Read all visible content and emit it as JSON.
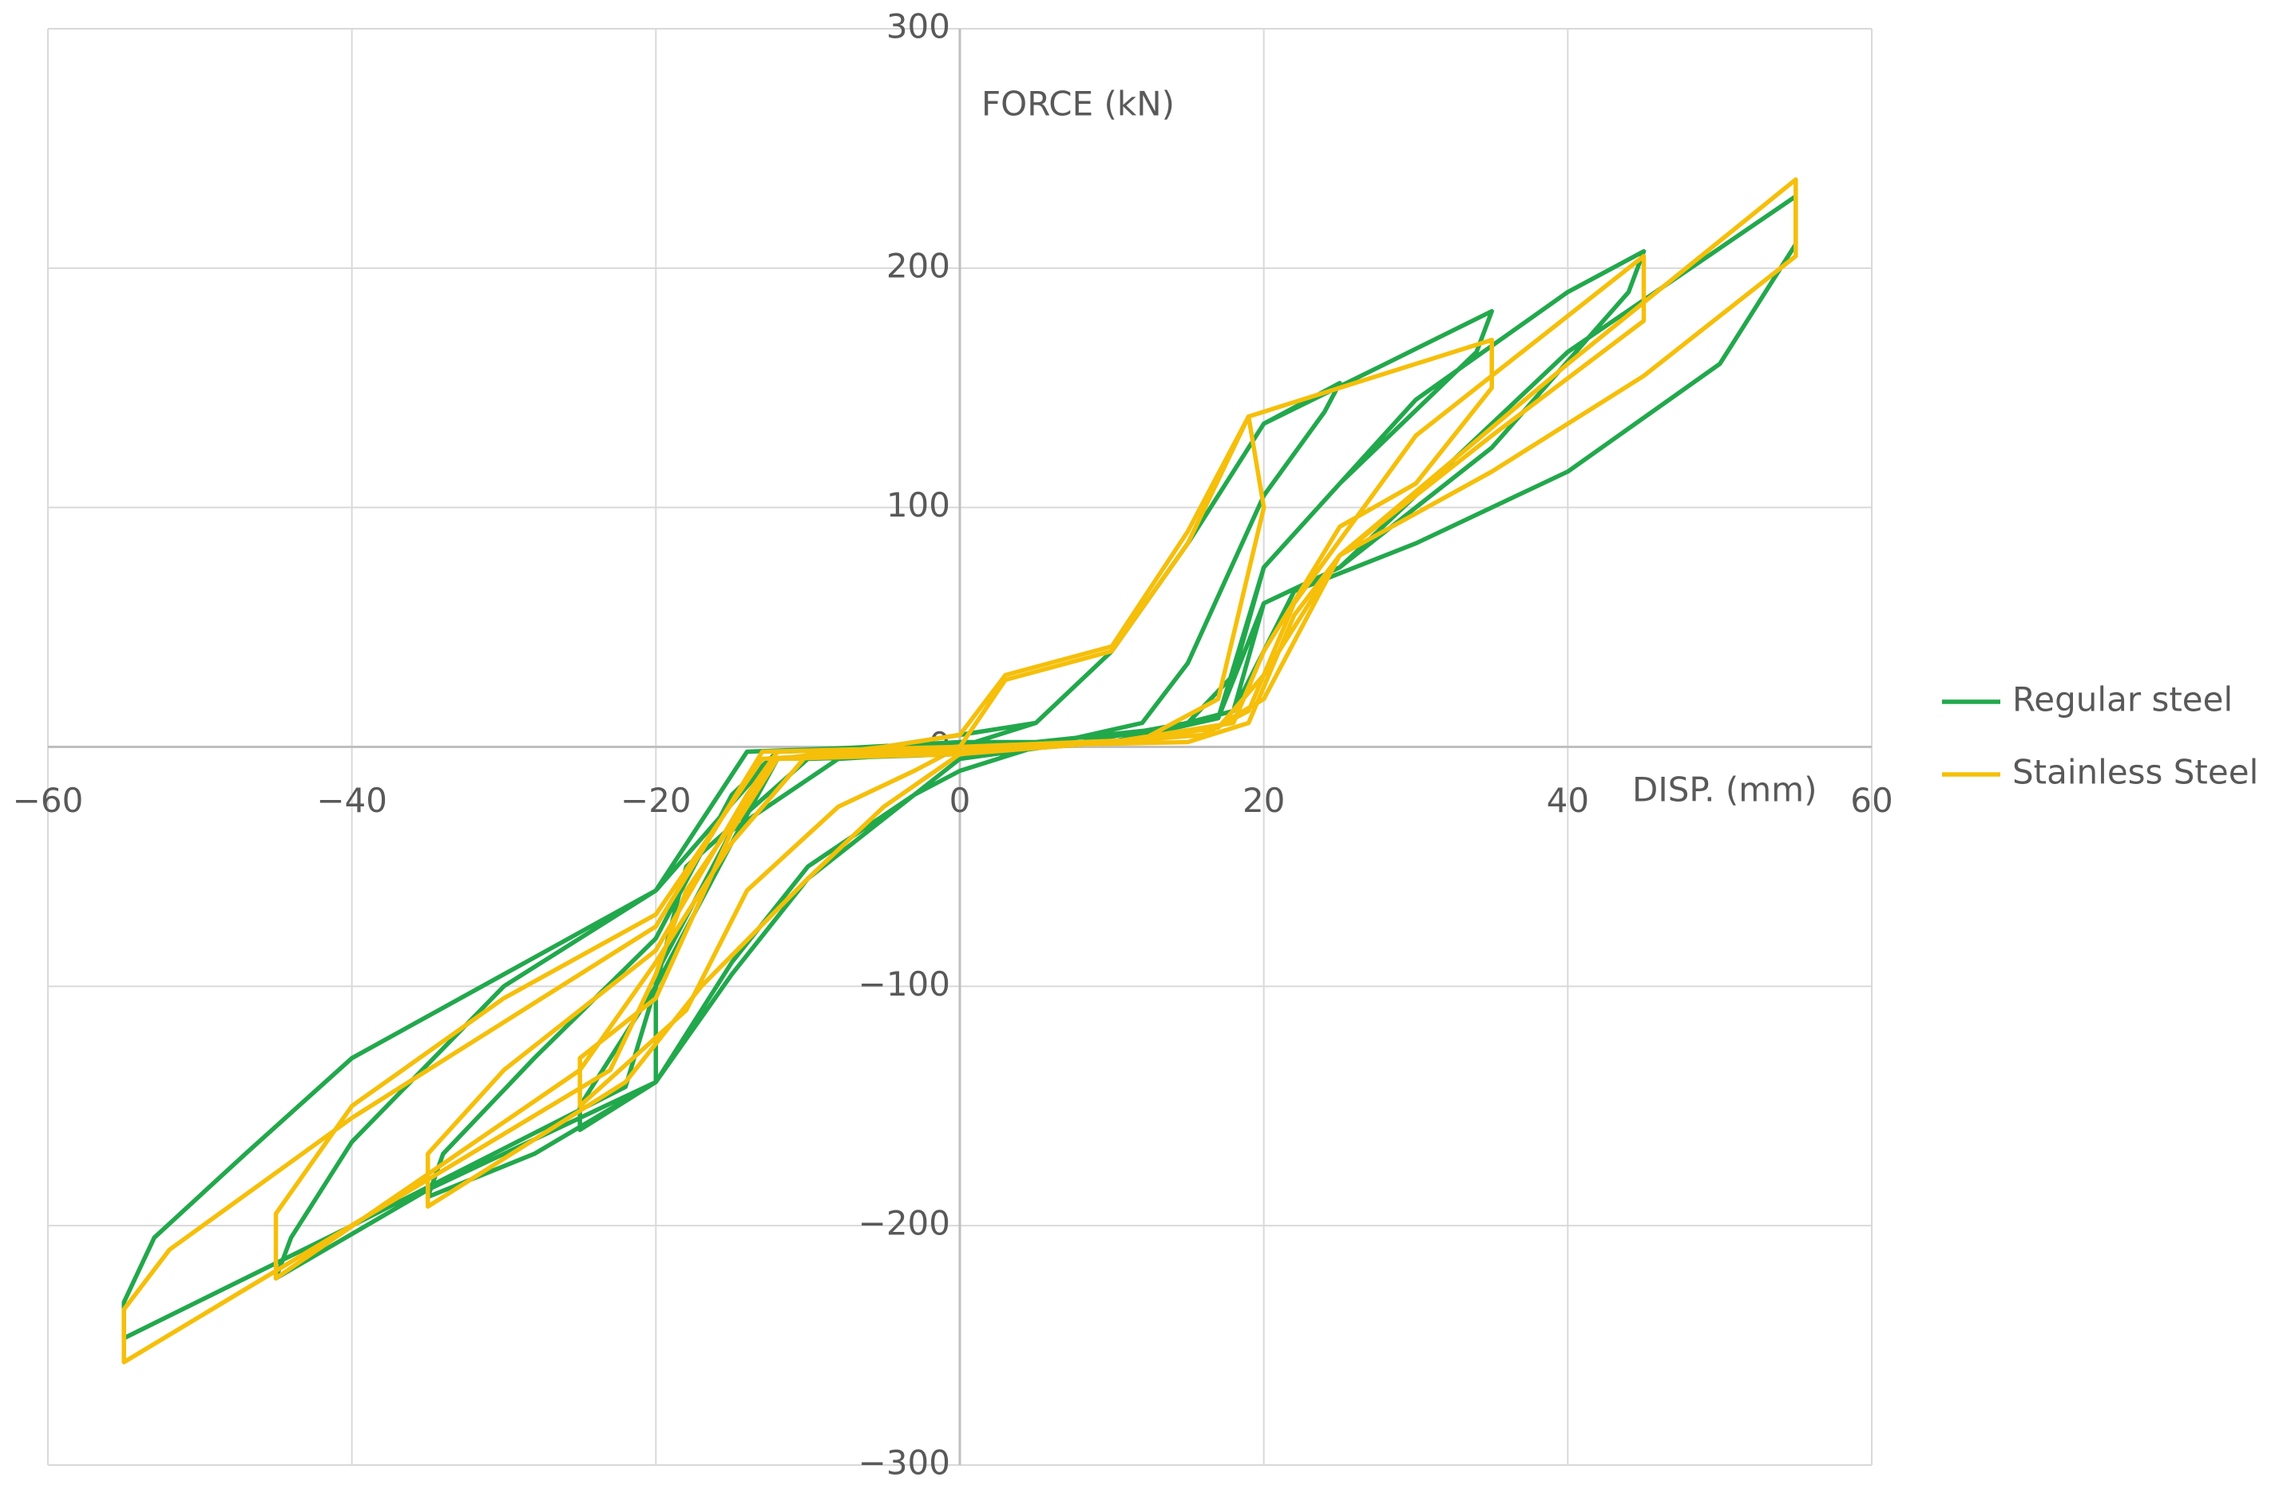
{
  "chart_data": {
    "type": "line",
    "x_label": "DISP. (mm)",
    "y_label": "FORCE (kN)",
    "xlim": [
      -60,
      60
    ],
    "xticks": [
      {
        "value": -60,
        "label": "−60"
      },
      {
        "value": -40,
        "label": "−40"
      },
      {
        "value": -20,
        "label": "−20"
      },
      0,
      20,
      40,
      60
    ],
    "ylim": [
      -300,
      300
    ],
    "yticks": [
      {
        "value": -300,
        "label": "−300"
      },
      {
        "value": -200,
        "label": "−200"
      },
      {
        "value": -100,
        "label": "−100"
      },
      0,
      100,
      200,
      300
    ],
    "grid": true,
    "legend": "right",
    "series": [
      {
        "name": "Regular steel",
        "color": "#22a84c",
        "x": [
          0,
          5,
          10,
          15,
          20,
          25,
          24,
          20,
          15,
          12,
          5,
          0,
          -3,
          -10,
          -15,
          -20,
          -25,
          -25,
          -20,
          -15,
          -12,
          -5,
          0,
          5,
          10,
          15,
          20,
          28,
          35,
          34,
          25,
          20,
          18,
          15,
          8,
          0,
          -3,
          -10,
          -15,
          -20,
          -28,
          -35,
          -34,
          -28,
          -20,
          -15,
          -12,
          0,
          5,
          14,
          17,
          20,
          30,
          40,
          45,
          44,
          35,
          25,
          20,
          18,
          10,
          0,
          -8,
          -15,
          -20,
          -20,
          -35,
          -45,
          -44,
          -40,
          -30,
          -20,
          -14,
          -5,
          0,
          10,
          17,
          20,
          25,
          40,
          55,
          55,
          50,
          40,
          30,
          22,
          18,
          10,
          0,
          -10,
          -18,
          -20,
          -22,
          -40,
          -55,
          -55,
          -53,
          -47,
          -40,
          -30,
          -20,
          -12,
          0
        ],
        "values": [
          0,
          10,
          40,
          85,
          135,
          152,
          140,
          105,
          35,
          10,
          0,
          -10,
          -20,
          -50,
          -90,
          -140,
          -160,
          -150,
          -100,
          -40,
          -5,
          0,
          5,
          10,
          40,
          85,
          135,
          160,
          182,
          165,
          110,
          75,
          30,
          10,
          2,
          -5,
          -20,
          -55,
          -95,
          -140,
          -170,
          -188,
          -170,
          -130,
          -80,
          -20,
          -2,
          2,
          2,
          8,
          12,
          75,
          145,
          190,
          207,
          190,
          125,
          75,
          60,
          15,
          2,
          -2,
          -5,
          -35,
          -95,
          -140,
          -185,
          -222,
          -205,
          -165,
          -100,
          -60,
          -2,
          0,
          0,
          2,
          12,
          60,
          75,
          165,
          230,
          210,
          160,
          115,
          85,
          65,
          15,
          2,
          -3,
          -5,
          -50,
          -100,
          -142,
          -200,
          -247,
          -232,
          -205,
          -170,
          -130,
          -95,
          -60,
          -2,
          0
        ]
      },
      {
        "name": "Stainless Steel",
        "color": "#f5bf0a",
        "x": [
          0,
          3,
          10,
          15,
          19,
          20,
          17,
          12,
          0,
          -3,
          -8,
          -14,
          -18,
          -25,
          -25,
          -20,
          -15,
          -12,
          -5,
          0,
          3,
          10,
          15,
          19,
          25,
          35,
          35,
          30,
          25,
          20,
          18,
          10,
          0,
          -5,
          -10,
          -17,
          -22,
          -35,
          -35,
          -30,
          -20,
          -14,
          -12,
          0,
          10,
          16,
          19,
          22,
          30,
          45,
          45,
          35,
          25,
          20,
          17,
          10,
          0,
          -10,
          -15,
          -20,
          -25,
          -45,
          -45,
          -40,
          -30,
          -20,
          -13,
          0,
          15,
          19,
          22,
          25,
          40,
          55,
          55,
          45,
          35,
          25,
          20,
          16,
          0,
          -12,
          -18,
          -20,
          -23,
          -55,
          -55,
          -52,
          -40,
          -30,
          -20,
          -13,
          0
        ],
        "values": [
          0,
          28,
          40,
          85,
          138,
          100,
          20,
          3,
          0,
          -10,
          -25,
          -60,
          -110,
          -150,
          -130,
          -105,
          -35,
          -5,
          0,
          5,
          30,
          42,
          90,
          138,
          150,
          170,
          150,
          110,
          92,
          40,
          10,
          2,
          -3,
          -25,
          -55,
          -100,
          -140,
          -192,
          -170,
          -135,
          -85,
          -20,
          -2,
          0,
          2,
          5,
          15,
          60,
          130,
          205,
          178,
          130,
          80,
          30,
          8,
          2,
          -2,
          -3,
          -40,
          -90,
          -135,
          -222,
          -195,
          -150,
          -105,
          -70,
          -5,
          0,
          2,
          10,
          55,
          80,
          160,
          237,
          205,
          155,
          115,
          80,
          20,
          5,
          -3,
          -5,
          -60,
          -95,
          -135,
          -257,
          -235,
          -210,
          -155,
          -115,
          -75,
          -2,
          0
        ]
      }
    ]
  }
}
